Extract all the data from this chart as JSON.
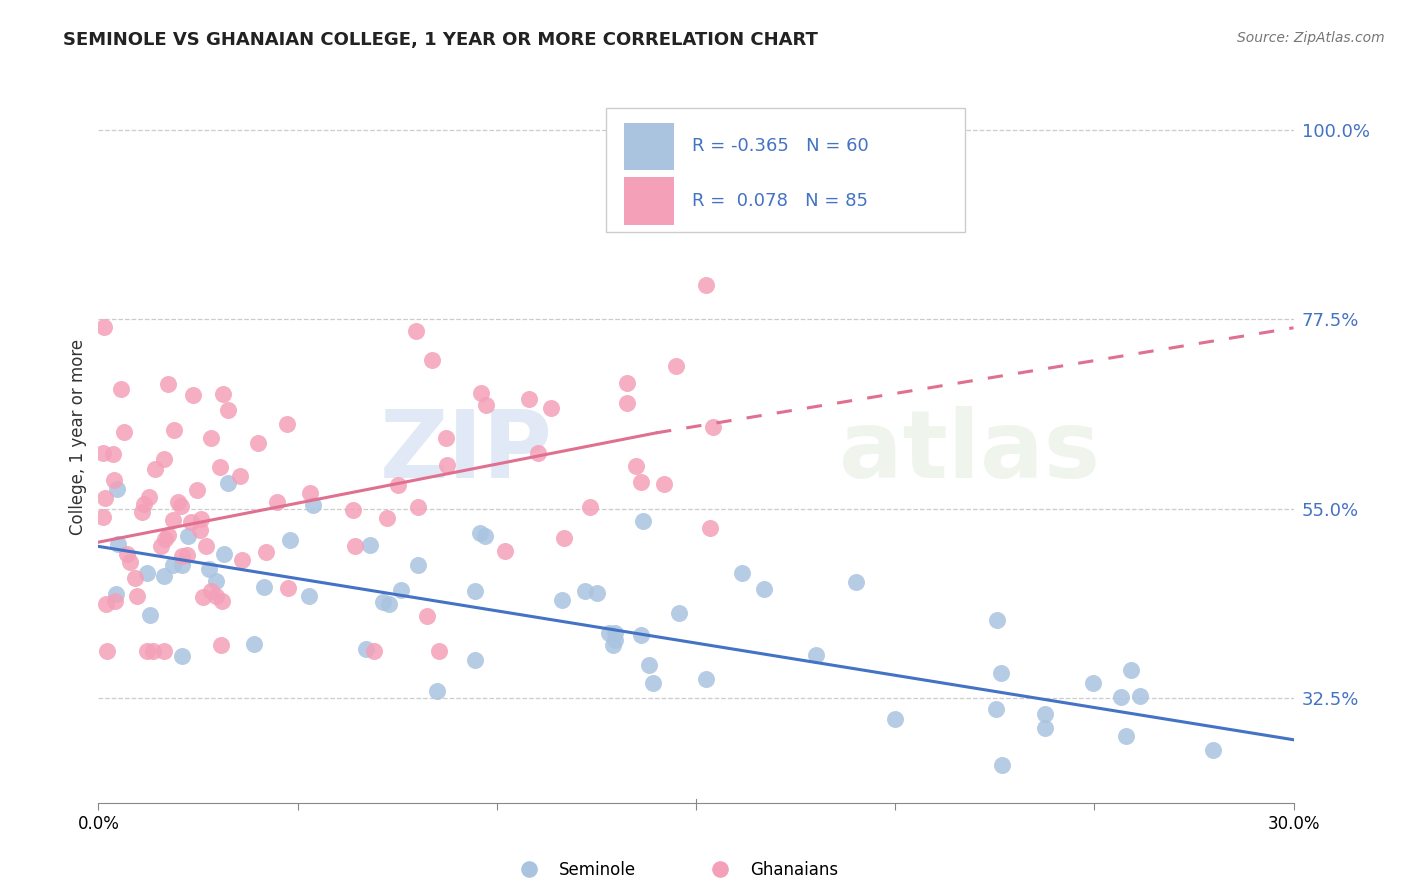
{
  "title": "SEMINOLE VS GHANAIAN COLLEGE, 1 YEAR OR MORE CORRELATION CHART",
  "source_text": "Source: ZipAtlas.com",
  "xlabel_bottom": "Seminole",
  "xlabel_bottom2": "Ghanaians",
  "ylabel": "College, 1 year or more",
  "xlim": [
    0.0,
    30.0
  ],
  "ylim": [
    20.0,
    107.0
  ],
  "y_tick_labels_right": [
    "32.5%",
    "55.0%",
    "77.5%",
    "100.0%"
  ],
  "y_tick_vals_right": [
    32.5,
    55.0,
    77.5,
    100.0
  ],
  "seminole_color": "#aac4e0",
  "ghanaian_color": "#f4a0b8",
  "seminole_line_color": "#4472c4",
  "ghanaian_line_color": "#e07090",
  "legend_R_seminole": "-0.365",
  "legend_N_seminole": "60",
  "legend_R_ghanaian": "0.078",
  "legend_N_ghanaian": "85",
  "watermark_zip": "ZIP",
  "watermark_atlas": "atlas",
  "background_color": "#ffffff",
  "grid_color": "#cccccc",
  "sem_line_x0": 0.0,
  "sem_line_y0": 50.5,
  "sem_line_x1": 30.0,
  "sem_line_y1": 27.5,
  "gha_line_solid_x0": 0.0,
  "gha_line_solid_y0": 51.0,
  "gha_line_solid_x1": 14.0,
  "gha_line_solid_y1": 64.0,
  "gha_line_dash_x0": 14.0,
  "gha_line_dash_y0": 64.0,
  "gha_line_dash_x1": 30.0,
  "gha_line_dash_y1": 76.5
}
